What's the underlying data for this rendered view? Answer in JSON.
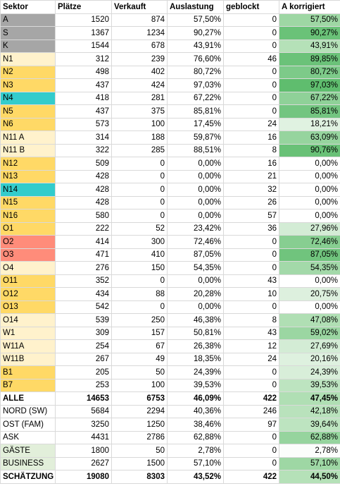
{
  "headers": [
    "Sektor",
    "Plätze",
    "Verkauft",
    "Auslastung",
    "geblockt",
    "A korrigiert"
  ],
  "rows": [
    {
      "sektor": "A",
      "plaetze": "1520",
      "verkauft": "874",
      "auslastung": "57,50%",
      "geblockt": "0",
      "korrigiert": "57,50%",
      "sektor_color": "#a6a6a6",
      "korrigiert_color": "#9ed7a4"
    },
    {
      "sektor": "S",
      "plaetze": "1367",
      "verkauft": "1234",
      "auslastung": "90,27%",
      "geblockt": "0",
      "korrigiert": "90,27%",
      "sektor_color": "#a6a6a6",
      "korrigiert_color": "#6ac278"
    },
    {
      "sektor": "K",
      "plaetze": "1544",
      "verkauft": "678",
      "auslastung": "43,91%",
      "geblockt": "0",
      "korrigiert": "43,91%",
      "sektor_color": "#a6a6a6",
      "korrigiert_color": "#b5e1b8"
    },
    {
      "sektor": "N1",
      "plaetze": "312",
      "verkauft": "239",
      "auslastung": "76,60%",
      "geblockt": "46",
      "korrigiert": "89,85%",
      "sektor_color": "#fff2cc",
      "korrigiert_color": "#6bc279"
    },
    {
      "sektor": "N2",
      "plaetze": "498",
      "verkauft": "402",
      "auslastung": "80,72%",
      "geblockt": "0",
      "korrigiert": "80,72%",
      "sektor_color": "#ffd966",
      "korrigiert_color": "#7dca89"
    },
    {
      "sektor": "N3",
      "plaetze": "437",
      "verkauft": "424",
      "auslastung": "97,03%",
      "geblockt": "0",
      "korrigiert": "97,03%",
      "sektor_color": "#ffd966",
      "korrigiert_color": "#5fbd6e"
    },
    {
      "sektor": "N4",
      "plaetze": "418",
      "verkauft": "281",
      "auslastung": "67,22%",
      "geblockt": "0",
      "korrigiert": "67,22%",
      "sektor_color": "#33cccc",
      "korrigiert_color": "#8fd198"
    },
    {
      "sektor": "N5",
      "plaetze": "437",
      "verkauft": "375",
      "auslastung": "85,81%",
      "geblockt": "0",
      "korrigiert": "85,81%",
      "sektor_color": "#ffd966",
      "korrigiert_color": "#73c580"
    },
    {
      "sektor": "N6",
      "plaetze": "573",
      "verkauft": "100",
      "auslastung": "17,45%",
      "geblockt": "24",
      "korrigiert": "18,21%",
      "sektor_color": "#ffd966",
      "korrigiert_color": "#e0f2e1"
    },
    {
      "sektor": "N11 A",
      "plaetze": "314",
      "verkauft": "188",
      "auslastung": "59,87%",
      "geblockt": "16",
      "korrigiert": "63,09%",
      "sektor_color": "#fff2cc",
      "korrigiert_color": "#96d49e"
    },
    {
      "sektor": "N11 B",
      "plaetze": "322",
      "verkauft": "285",
      "auslastung": "88,51%",
      "geblockt": "8",
      "korrigiert": "90,76%",
      "sektor_color": "#fff2cc",
      "korrigiert_color": "#69c177"
    },
    {
      "sektor": "N12",
      "plaetze": "509",
      "verkauft": "0",
      "auslastung": "0,00%",
      "geblockt": "16",
      "korrigiert": "0,00%",
      "sektor_color": "#ffd966",
      "korrigiert_color": "#ffffff"
    },
    {
      "sektor": "N13",
      "plaetze": "428",
      "verkauft": "0",
      "auslastung": "0,00%",
      "geblockt": "21",
      "korrigiert": "0,00%",
      "sektor_color": "#ffd966",
      "korrigiert_color": "#ffffff"
    },
    {
      "sektor": "N14",
      "plaetze": "428",
      "verkauft": "0",
      "auslastung": "0,00%",
      "geblockt": "32",
      "korrigiert": "0,00%",
      "sektor_color": "#33cccc",
      "korrigiert_color": "#ffffff"
    },
    {
      "sektor": "N15",
      "plaetze": "428",
      "verkauft": "0",
      "auslastung": "0,00%",
      "geblockt": "26",
      "korrigiert": "0,00%",
      "sektor_color": "#ffd966",
      "korrigiert_color": "#ffffff"
    },
    {
      "sektor": "N16",
      "plaetze": "580",
      "verkauft": "0",
      "auslastung": "0,00%",
      "geblockt": "57",
      "korrigiert": "0,00%",
      "sektor_color": "#ffd966",
      "korrigiert_color": "#ffffff"
    },
    {
      "sektor": "O1",
      "plaetze": "222",
      "verkauft": "52",
      "auslastung": "23,42%",
      "geblockt": "36",
      "korrigiert": "27,96%",
      "sektor_color": "#ffd966",
      "korrigiert_color": "#d3ecd5"
    },
    {
      "sektor": "O2",
      "plaetze": "414",
      "verkauft": "300",
      "auslastung": "72,46%",
      "geblockt": "0",
      "korrigiert": "72,46%",
      "sektor_color": "#ff8c7a",
      "korrigiert_color": "#87ce91"
    },
    {
      "sektor": "O3",
      "plaetze": "471",
      "verkauft": "410",
      "auslastung": "87,05%",
      "geblockt": "0",
      "korrigiert": "87,05%",
      "sektor_color": "#ff8c7a",
      "korrigiert_color": "#70c47d"
    },
    {
      "sektor": "O4",
      "plaetze": "276",
      "verkauft": "150",
      "auslastung": "54,35%",
      "geblockt": "0",
      "korrigiert": "54,35%",
      "sektor_color": "#fff2cc",
      "korrigiert_color": "#a3d9a9"
    },
    {
      "sektor": "O11",
      "plaetze": "352",
      "verkauft": "0",
      "auslastung": "0,00%",
      "geblockt": "43",
      "korrigiert": "0,00%",
      "sektor_color": "#ffd966",
      "korrigiert_color": "#ffffff"
    },
    {
      "sektor": "O12",
      "plaetze": "434",
      "verkauft": "88",
      "auslastung": "20,28%",
      "geblockt": "10",
      "korrigiert": "20,75%",
      "sektor_color": "#ffd966",
      "korrigiert_color": "#ddf0de"
    },
    {
      "sektor": "O13",
      "plaetze": "542",
      "verkauft": "0",
      "auslastung": "0,00%",
      "geblockt": "0",
      "korrigiert": "0,00%",
      "sektor_color": "#ffd966",
      "korrigiert_color": "#ffffff"
    },
    {
      "sektor": "O14",
      "plaetze": "539",
      "verkauft": "250",
      "auslastung": "46,38%",
      "geblockt": "8",
      "korrigiert": "47,08%",
      "sektor_color": "#fff2cc",
      "korrigiert_color": "#b0dfb4"
    },
    {
      "sektor": "W1",
      "plaetze": "309",
      "verkauft": "157",
      "auslastung": "50,81%",
      "geblockt": "43",
      "korrigiert": "59,02%",
      "sektor_color": "#fff2cc",
      "korrigiert_color": "#9bd6a2"
    },
    {
      "sektor": "W11A",
      "plaetze": "254",
      "verkauft": "67",
      "auslastung": "26,38%",
      "geblockt": "12",
      "korrigiert": "27,69%",
      "sektor_color": "#fff2cc",
      "korrigiert_color": "#d3ecd5"
    },
    {
      "sektor": "W11B",
      "plaetze": "267",
      "verkauft": "49",
      "auslastung": "18,35%",
      "geblockt": "24",
      "korrigiert": "20,16%",
      "sektor_color": "#fff2cc",
      "korrigiert_color": "#def1df"
    },
    {
      "sektor": "B1",
      "plaetze": "205",
      "verkauft": "50",
      "auslastung": "24,39%",
      "geblockt": "0",
      "korrigiert": "24,39%",
      "sektor_color": "#ffd966",
      "korrigiert_color": "#d8eed9"
    },
    {
      "sektor": "B7",
      "plaetze": "253",
      "verkauft": "100",
      "auslastung": "39,53%",
      "geblockt": "0",
      "korrigiert": "39,53%",
      "sektor_color": "#ffd966",
      "korrigiert_color": "#bde4c0"
    },
    {
      "sektor": "ALLE",
      "plaetze": "14653",
      "verkauft": "6753",
      "auslastung": "46,09%",
      "geblockt": "422",
      "korrigiert": "47,45%",
      "sektor_color": "#ffffff",
      "korrigiert_color": "#b0dfb4",
      "bold": true
    },
    {
      "sektor": "NORD (SW)",
      "plaetze": "5684",
      "verkauft": "2294",
      "auslastung": "40,36%",
      "geblockt": "246",
      "korrigiert": "42,18%",
      "sektor_color": "#ffffff",
      "korrigiert_color": "#b9e2bc"
    },
    {
      "sektor": "OST (FAM)",
      "plaetze": "3250",
      "verkauft": "1250",
      "auslastung": "38,46%",
      "geblockt": "97",
      "korrigiert": "39,64%",
      "sektor_color": "#ffffff",
      "korrigiert_color": "#bde4c0"
    },
    {
      "sektor": "ASK",
      "plaetze": "4431",
      "verkauft": "2786",
      "auslastung": "62,88%",
      "geblockt": "0",
      "korrigiert": "62,88%",
      "sektor_color": "#ffffff",
      "korrigiert_color": "#96d49e"
    },
    {
      "sektor": "GÄSTE",
      "plaetze": "1800",
      "verkauft": "50",
      "auslastung": "2,78%",
      "geblockt": "0",
      "korrigiert": "2,78%",
      "sektor_color": "#e2efda",
      "korrigiert_color": "#fbfdfb"
    },
    {
      "sektor": "BUSINESS",
      "plaetze": "2627",
      "verkauft": "1500",
      "auslastung": "57,10%",
      "geblockt": "0",
      "korrigiert": "57,10%",
      "sektor_color": "#e2efda",
      "korrigiert_color": "#9ed7a4"
    },
    {
      "sektor": "SCHÄTZUNG",
      "plaetze": "19080",
      "verkauft": "8303",
      "auslastung": "43,52%",
      "geblockt": "422",
      "korrigiert": "44,50%",
      "sektor_color": "#ffffff",
      "korrigiert_color": "#b5e1b8",
      "bold": true
    }
  ]
}
